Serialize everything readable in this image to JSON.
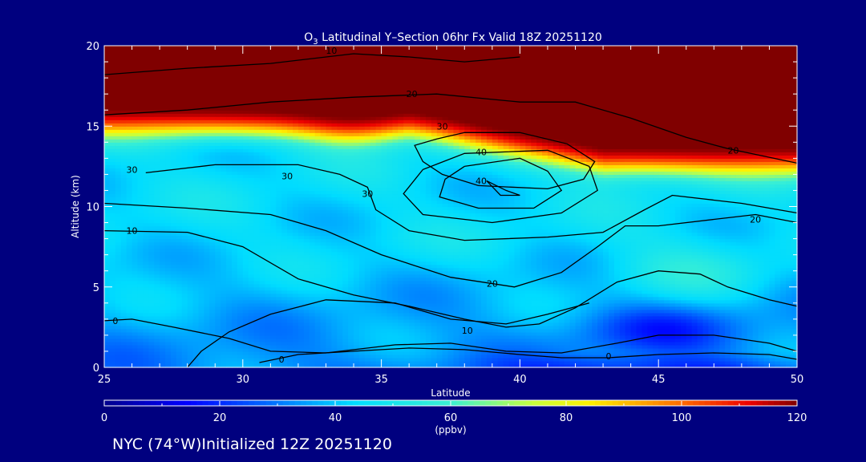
{
  "chart_data": {
    "type": "heatmap",
    "title_prefix": "O",
    "title_sub": "3",
    "title_rest": " Latitudinal Y–Section 06hr  Fx Valid 18Z 20251120",
    "xlabel": "Latitude",
    "ylabel": "Altitude (km)",
    "xlim": [
      25,
      50
    ],
    "ylim": [
      0,
      20
    ],
    "xticks": [
      25,
      30,
      35,
      40,
      45,
      50
    ],
    "yticks": [
      0,
      5,
      10,
      15,
      20
    ],
    "colorbar": {
      "range": [
        0,
        120
      ],
      "ticks": [
        0,
        20,
        40,
        60,
        80,
        100,
        120
      ],
      "unit": "(ppbv)"
    },
    "contour_levels": [
      0,
      10,
      20,
      30,
      40
    ],
    "contour_labels": [
      {
        "text": "10",
        "x": 33.2,
        "y": 19.7
      },
      {
        "text": "20",
        "x": 36.1,
        "y": 17.0
      },
      {
        "text": "30",
        "x": 37.2,
        "y": 15.0
      },
      {
        "text": "40",
        "x": 38.6,
        "y": 13.4
      },
      {
        "text": "40",
        "x": 38.6,
        "y": 11.6
      },
      {
        "text": "30",
        "x": 34.5,
        "y": 10.8
      },
      {
        "text": "30",
        "x": 31.6,
        "y": 11.9
      },
      {
        "text": "30",
        "x": 26.0,
        "y": 12.3
      },
      {
        "text": "20",
        "x": 47.7,
        "y": 13.5
      },
      {
        "text": "20",
        "x": 48.5,
        "y": 9.2
      },
      {
        "text": "20",
        "x": 39.0,
        "y": 5.2
      },
      {
        "text": "10",
        "x": 26.0,
        "y": 8.5
      },
      {
        "text": "10",
        "x": 38.1,
        "y": 2.3
      },
      {
        "text": "0",
        "x": 25.4,
        "y": 2.9
      },
      {
        "text": "0",
        "x": 31.4,
        "y": 0.5
      },
      {
        "text": "0",
        "x": 43.2,
        "y": 0.7
      }
    ],
    "legend": "none",
    "grid": false
  },
  "footer": "NYC (74°W)Initialized 12Z 20251120"
}
